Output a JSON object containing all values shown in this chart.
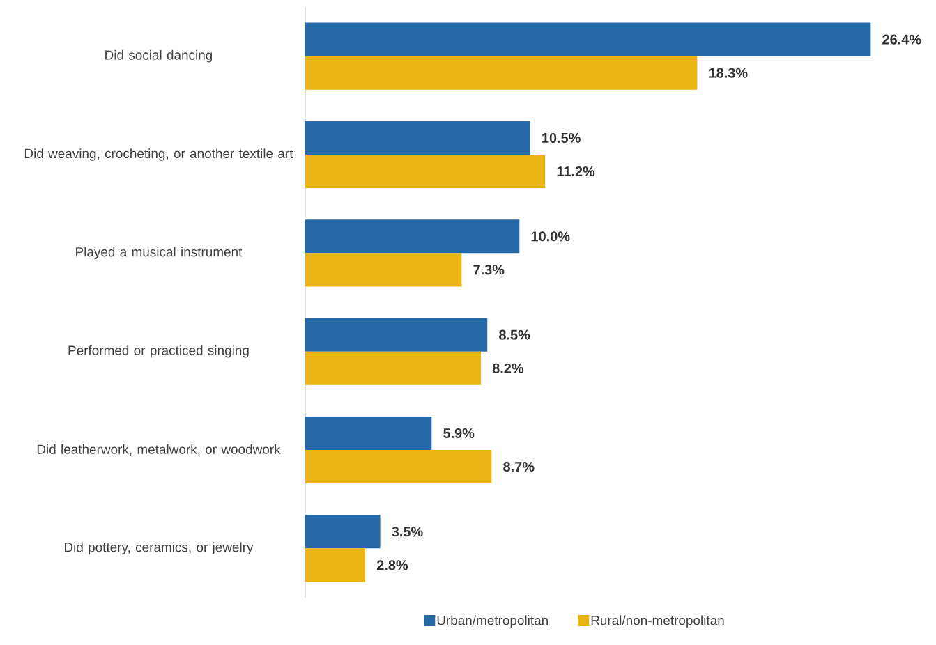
{
  "chart_data": {
    "type": "bar",
    "orientation": "horizontal",
    "tick_labels": "y",
    "legend": "bottom",
    "categories": [
      "Did social dancing",
      "Did weaving, crocheting, or another textile art",
      "Played a musical instrument",
      "Performed or practiced singing",
      "Did leatherwork, metalwork, or woodwork",
      "Did pottery, ceramics, or jewelry"
    ],
    "series": [
      {
        "name": "Urban/metropolitan",
        "color": "#2569a8",
        "values": [
          26.4,
          10.5,
          10.0,
          8.5,
          5.9,
          3.5
        ],
        "value_labels": [
          "26.4%",
          "10.5%",
          "10.0%",
          "8.5%",
          "5.9%",
          "3.5%"
        ]
      },
      {
        "name": "Rural/non-metropolitan",
        "color": "#eab514",
        "values": [
          18.3,
          11.2,
          7.3,
          8.2,
          8.7,
          2.8
        ],
        "value_labels": [
          "18.3%",
          "11.2%",
          "7.3%",
          "8.2%",
          "8.7%",
          "2.8%"
        ]
      }
    ]
  }
}
